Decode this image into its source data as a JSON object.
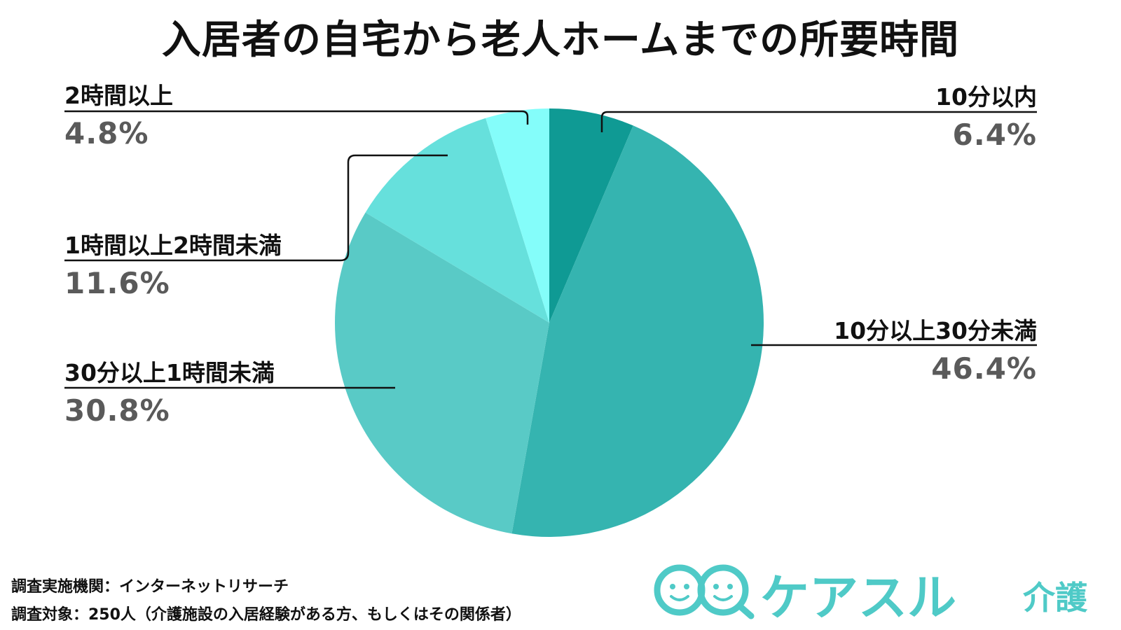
{
  "title": "入居者の自宅から老人ホームまでの所要時間",
  "chart_data": {
    "type": "pie",
    "title": "入居者の自宅から老人ホームまでの所要時間",
    "unit": "%",
    "slices": [
      {
        "label": "10分以内",
        "value": 6.4,
        "display": "6.4%",
        "color": "#0f9a94"
      },
      {
        "label": "10分以上30分未満",
        "value": 46.4,
        "display": "46.4%",
        "color": "#35b4b0"
      },
      {
        "label": "30分以上1時間未満",
        "value": 30.8,
        "display": "30.8%",
        "color": "#59cac6"
      },
      {
        "label": "1時間以上2時間未満",
        "value": 11.6,
        "display": "11.6%",
        "color": "#66e0dc"
      },
      {
        "label": "2時間以上",
        "value": 4.8,
        "display": "4.8%",
        "color": "#84fdfa"
      }
    ]
  },
  "footer": {
    "line1": "調査実施機関：インターネットリサーチ",
    "line2": "調査対象：250人（介護施設の入居経験がある方、もしくはその関係者）"
  },
  "logo": {
    "text": "ケアスル",
    "sub": "介護",
    "icon": "smiley-faces-icon",
    "color": "#4fcac7"
  }
}
